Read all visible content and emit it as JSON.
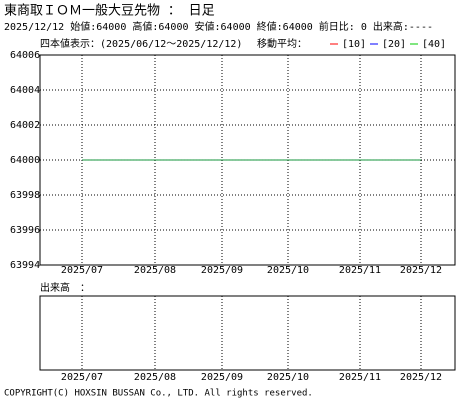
{
  "header": {
    "title": "東商取ＩＯＭ一般大豆先物 ： 日足",
    "quote": "2025/12/12 始値:64000 高値:64000 安値:64000 終値:64000 前日比: 0 出来高:----"
  },
  "chart_data": [
    {
      "type": "line",
      "subtitle": "四本値表示：(2025/06/12～2025/12/12)",
      "legend_title": "移動平均：",
      "categories": [
        "2025/07",
        "2025/08",
        "2025/09",
        "2025/10",
        "2025/11",
        "2025/12"
      ],
      "series": [
        {
          "name": "[10]",
          "color": "#ff0000",
          "values": [
            64000,
            64000,
            64000,
            64000,
            64000,
            64000
          ]
        },
        {
          "name": "[20]",
          "color": "#0000ff",
          "values": [
            64000,
            64000,
            64000,
            64000,
            64000,
            64000
          ]
        },
        {
          "name": "[40]",
          "color": "#00cc00",
          "values": [
            64000,
            64000,
            64000,
            64000,
            64000,
            64000
          ]
        }
      ],
      "ylim": [
        63994,
        64006
      ],
      "yticks": [
        63994,
        63996,
        63998,
        64000,
        64002,
        64004,
        64006
      ],
      "grid": true
    },
    {
      "type": "bar",
      "title": "出来高　：",
      "categories": [
        "2025/07",
        "2025/08",
        "2025/09",
        "2025/10",
        "2025/11",
        "2025/12"
      ],
      "grid": true
    }
  ],
  "footer": {
    "copyright": "COPYRIGHT(C) HOXSIN BUSSAN Co., LTD. All rights reserved."
  }
}
